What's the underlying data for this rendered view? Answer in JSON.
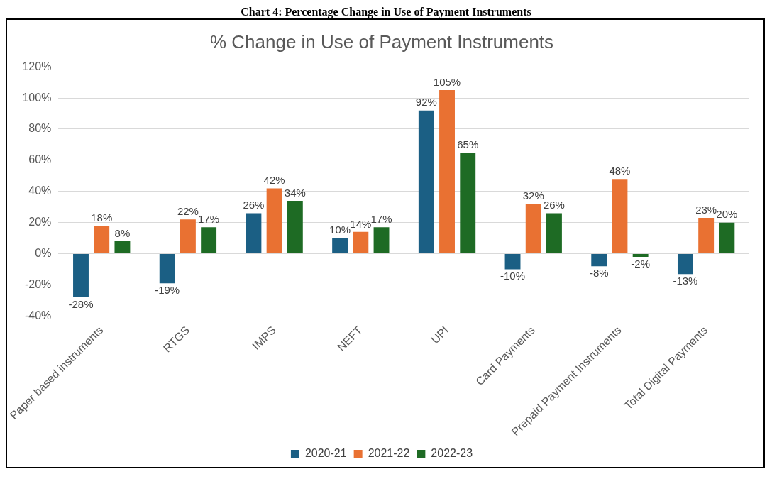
{
  "chart_data": {
    "type": "bar",
    "title": "% Change in Use of Payment Instruments",
    "annotations": [
      "Chart 4: Percentage Change in Use of Payment Instruments"
    ],
    "categories": [
      "Paper based instruments",
      "RTGS",
      "IMPS",
      "NEFT",
      "UPI",
      "Card Payments",
      "Prepaid Payment Instruments",
      "Total Digital Payments"
    ],
    "series": [
      {
        "name": "2020-21",
        "color": "#1b5f84",
        "values": [
          -28,
          -19,
          26,
          10,
          92,
          -10,
          -8,
          -13
        ],
        "value_labels": [
          "-28%",
          "-19%",
          "26%",
          "10%",
          "92%",
          "-10%",
          "-8%",
          "-13%"
        ]
      },
      {
        "name": "2021-22",
        "color": "#e97132",
        "values": [
          18,
          22,
          42,
          14,
          105,
          32,
          48,
          23
        ],
        "value_labels": [
          "18%",
          "22%",
          "42%",
          "14%",
          "105%",
          "32%",
          "48%",
          "23%"
        ]
      },
      {
        "name": "2022-23",
        "color": "#1e6b24",
        "values": [
          8,
          17,
          34,
          17,
          65,
          26,
          -2,
          20
        ],
        "value_labels": [
          "8%",
          "17%",
          "34%",
          "17%",
          "65%",
          "26%",
          "-2%",
          "20%"
        ]
      }
    ],
    "ylim": [
      -40,
      120
    ],
    "yticks": [
      {
        "value": -40,
        "label": "-40%"
      },
      {
        "value": -20,
        "label": "-20%"
      },
      {
        "value": 0,
        "label": "0%"
      },
      {
        "value": 20,
        "label": "20%"
      },
      {
        "value": 40,
        "label": "40%"
      },
      {
        "value": 60,
        "label": "60%"
      },
      {
        "value": 80,
        "label": "80%"
      },
      {
        "value": 100,
        "label": "100%"
      },
      {
        "value": 120,
        "label": "120%"
      }
    ],
    "grid": "y",
    "legend": "bottom"
  }
}
